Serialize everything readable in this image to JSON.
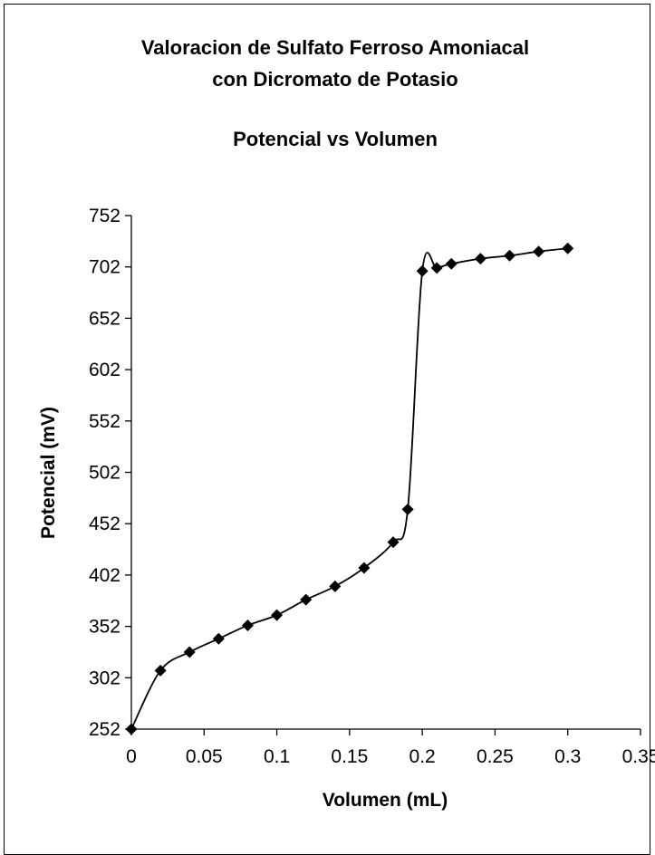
{
  "chart_data": {
    "type": "scatter",
    "title_lines": [
      "Valoracion de Sulfato Ferroso Amoniacal",
      "con Dicromato de Potasio"
    ],
    "subtitle": "Potencial vs Volumen",
    "xlabel": "Volumen (mL)",
    "ylabel": "Potencial (mV)",
    "xlim": [
      0,
      0.35
    ],
    "ylim": [
      252,
      752
    ],
    "x_ticks": [
      0,
      0.05,
      0.1,
      0.15,
      0.2,
      0.25,
      0.3,
      0.35
    ],
    "x_tick_labels": [
      "0",
      "0.05",
      "0.1",
      "0.15",
      "0.2",
      "0.25",
      "0.3",
      "0.35"
    ],
    "y_ticks": [
      252,
      302,
      352,
      402,
      452,
      502,
      552,
      602,
      652,
      702,
      752
    ],
    "y_tick_labels": [
      "252",
      "302",
      "352",
      "402",
      "452",
      "502",
      "552",
      "602",
      "652",
      "702",
      "752"
    ],
    "grid": false,
    "legend": "none",
    "smoothed_line": true,
    "marker": "diamond",
    "colors": {
      "line": "#000000",
      "marker": "#000000"
    },
    "series": [
      {
        "x": [
          0,
          0.02,
          0.04,
          0.06,
          0.08,
          0.1,
          0.12,
          0.14,
          0.16,
          0.18,
          0.19,
          0.2,
          0.21,
          0.22,
          0.24,
          0.26,
          0.28,
          0.3
        ],
        "y": [
          252,
          309,
          327,
          340,
          353,
          363,
          378,
          391,
          409,
          434,
          466,
          698,
          701,
          705,
          710,
          713,
          717,
          720
        ]
      }
    ]
  }
}
